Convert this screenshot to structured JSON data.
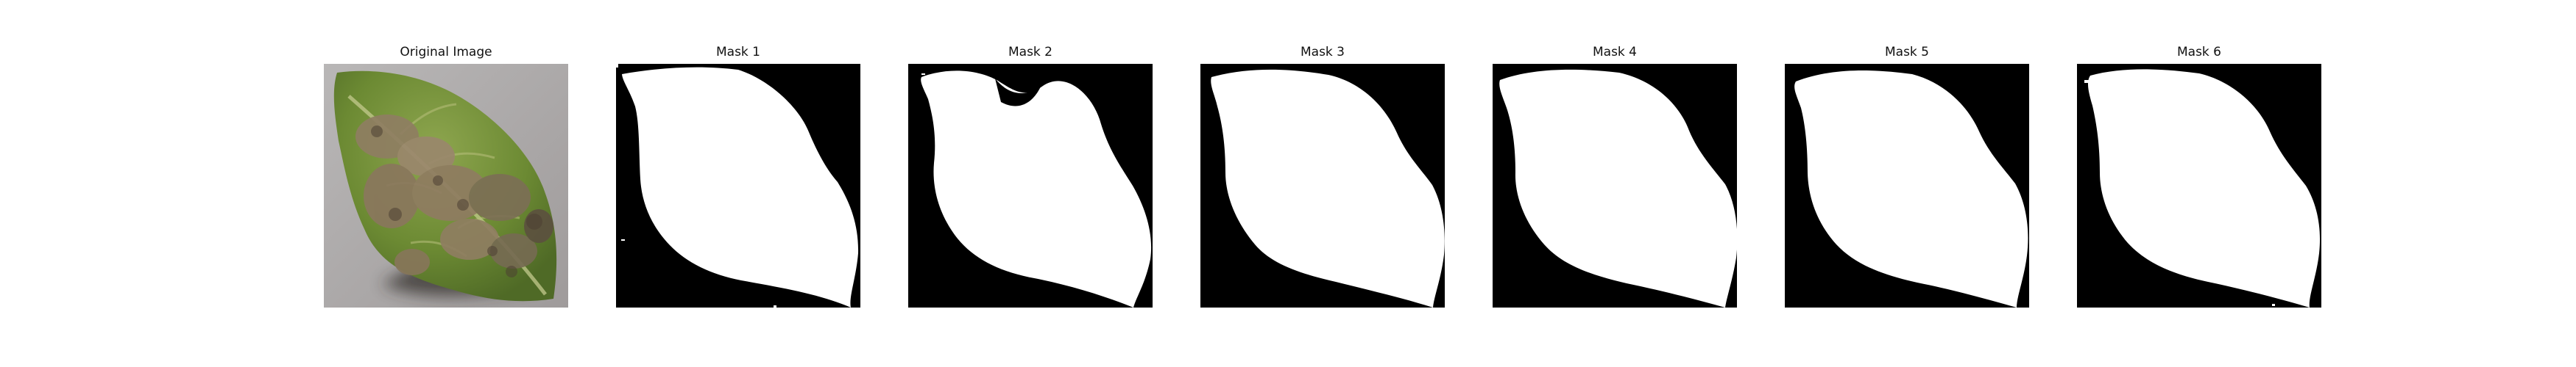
{
  "figure": {
    "panels": [
      {
        "title": "Original Image",
        "content": "photo",
        "colors": {
          "background": "#a9a6a6",
          "leaf": "#6f8f39",
          "lesion": "#8d7d63",
          "shadow": "#3f3732"
        }
      },
      {
        "title": "Mask 1",
        "content": "mask",
        "colors": {
          "background": "#000000",
          "mask": "#ffffff"
        }
      },
      {
        "title": "Mask 2",
        "content": "mask",
        "colors": {
          "background": "#000000",
          "mask": "#ffffff"
        }
      },
      {
        "title": "Mask 3",
        "content": "mask",
        "colors": {
          "background": "#000000",
          "mask": "#ffffff"
        }
      },
      {
        "title": "Mask 4",
        "content": "mask",
        "colors": {
          "background": "#000000",
          "mask": "#ffffff"
        }
      },
      {
        "title": "Mask 5",
        "content": "mask",
        "colors": {
          "background": "#000000",
          "mask": "#ffffff"
        }
      },
      {
        "title": "Mask 6",
        "content": "mask",
        "colors": {
          "background": "#000000",
          "mask": "#ffffff"
        }
      }
    ]
  }
}
